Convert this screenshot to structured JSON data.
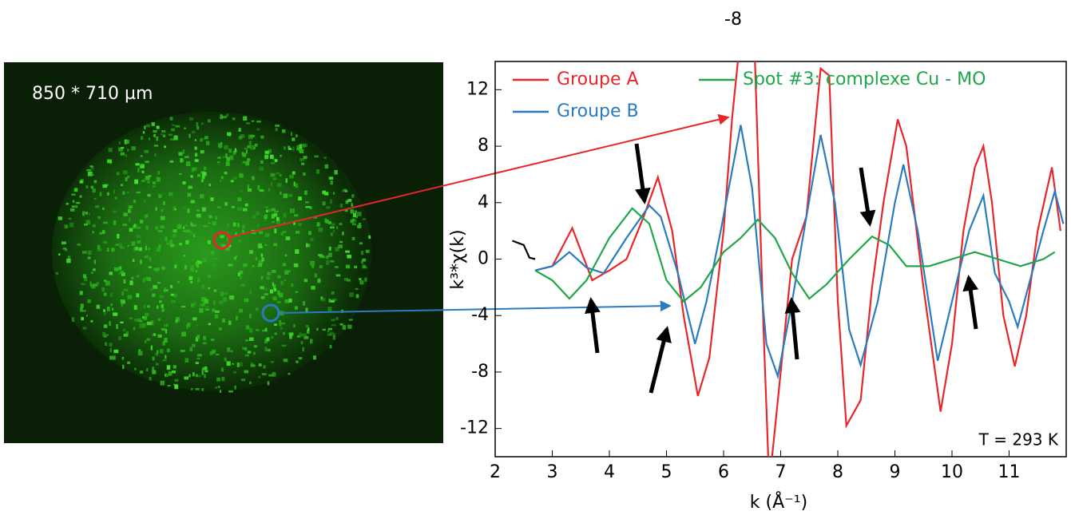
{
  "chart_data": {
    "type": "line",
    "top_label": "-8",
    "image_caption": "850 * 710 µm",
    "annotation": "T = 293 K",
    "xlabel": "k (Å⁻¹)",
    "ylabel": "k³*χ(k)",
    "xlim": [
      2,
      12
    ],
    "ylim": [
      -14,
      14
    ],
    "xticks": [
      2,
      3,
      4,
      5,
      6,
      7,
      8,
      9,
      10,
      11
    ],
    "yticks": [
      -12,
      -8,
      -4,
      0,
      4,
      8,
      12
    ],
    "series": [
      {
        "name": "Groupe A",
        "color": "#e8262a",
        "x": [
          2.7,
          3.0,
          3.35,
          3.7,
          4.0,
          4.3,
          4.6,
          4.85,
          5.1,
          5.3,
          5.55,
          5.75,
          6.0,
          6.15,
          6.3,
          6.55,
          6.7,
          6.8,
          7.0,
          7.2,
          7.45,
          7.7,
          7.85,
          8.0,
          8.15,
          8.4,
          8.6,
          8.8,
          9.05,
          9.2,
          9.5,
          9.8,
          10.0,
          10.2,
          10.4,
          10.55,
          10.7,
          10.9,
          11.1,
          11.3,
          11.5,
          11.75,
          11.9
        ],
        "values": [
          -0.8,
          -0.5,
          2.2,
          -1.5,
          -0.8,
          0,
          3,
          5.8,
          2,
          -4,
          -9.7,
          -7,
          2,
          10,
          16,
          14,
          -5,
          -16,
          -8,
          0,
          3,
          13.5,
          13,
          -3,
          -11.8,
          -10,
          -2,
          4,
          9.9,
          8,
          -2,
          -10.8,
          -6,
          2,
          6.5,
          8,
          4,
          -4,
          -7.6,
          -4,
          2,
          6.5,
          2
        ]
      },
      {
        "name": "Groupe B",
        "color": "#2a7bbf",
        "x": [
          2.7,
          3.0,
          3.3,
          3.6,
          3.9,
          4.3,
          4.7,
          4.9,
          5.2,
          5.5,
          5.7,
          5.95,
          6.3,
          6.5,
          6.75,
          6.95,
          7.2,
          7.45,
          7.7,
          7.95,
          8.2,
          8.4,
          8.7,
          9.0,
          9.15,
          9.4,
          9.75,
          10.0,
          10.3,
          10.55,
          10.75,
          11.0,
          11.15,
          11.4,
          11.6,
          11.8,
          11.95
        ],
        "values": [
          -0.8,
          -0.5,
          0.5,
          -0.6,
          -1,
          1.5,
          3.8,
          3,
          -1,
          -6,
          -3,
          2,
          9.5,
          5,
          -6,
          -8.3,
          -3,
          3,
          8.8,
          4,
          -5,
          -7.5,
          -3,
          4,
          6.7,
          2,
          -7.2,
          -3,
          2,
          4.5,
          -1,
          -3,
          -4.8,
          -1,
          2,
          4.8,
          2.5
        ]
      },
      {
        "name": "Spot #3: complexe Cu - MO",
        "color": "#1fa64a",
        "x": [
          2.7,
          3.0,
          3.3,
          3.6,
          4.0,
          4.4,
          4.7,
          5.0,
          5.3,
          5.6,
          6.0,
          6.3,
          6.6,
          6.9,
          7.2,
          7.5,
          7.8,
          8.2,
          8.6,
          8.9,
          9.2,
          9.6,
          10.0,
          10.4,
          10.8,
          11.2,
          11.6,
          11.8
        ],
        "values": [
          -0.8,
          -1.5,
          -2.8,
          -1.5,
          1.5,
          3.6,
          2.5,
          -1.5,
          -3,
          -2,
          0.5,
          1.5,
          2.8,
          1.5,
          -1,
          -2.8,
          -1.8,
          0,
          1.6,
          1,
          -0.5,
          -0.5,
          0,
          0.5,
          0,
          -0.5,
          0,
          0.5
        ]
      }
    ],
    "reference_line": {
      "color": "#000000",
      "x": [
        2.3,
        2.5,
        2.6,
        2.7
      ],
      "values": [
        1.3,
        1.0,
        0.1,
        0
      ]
    }
  }
}
